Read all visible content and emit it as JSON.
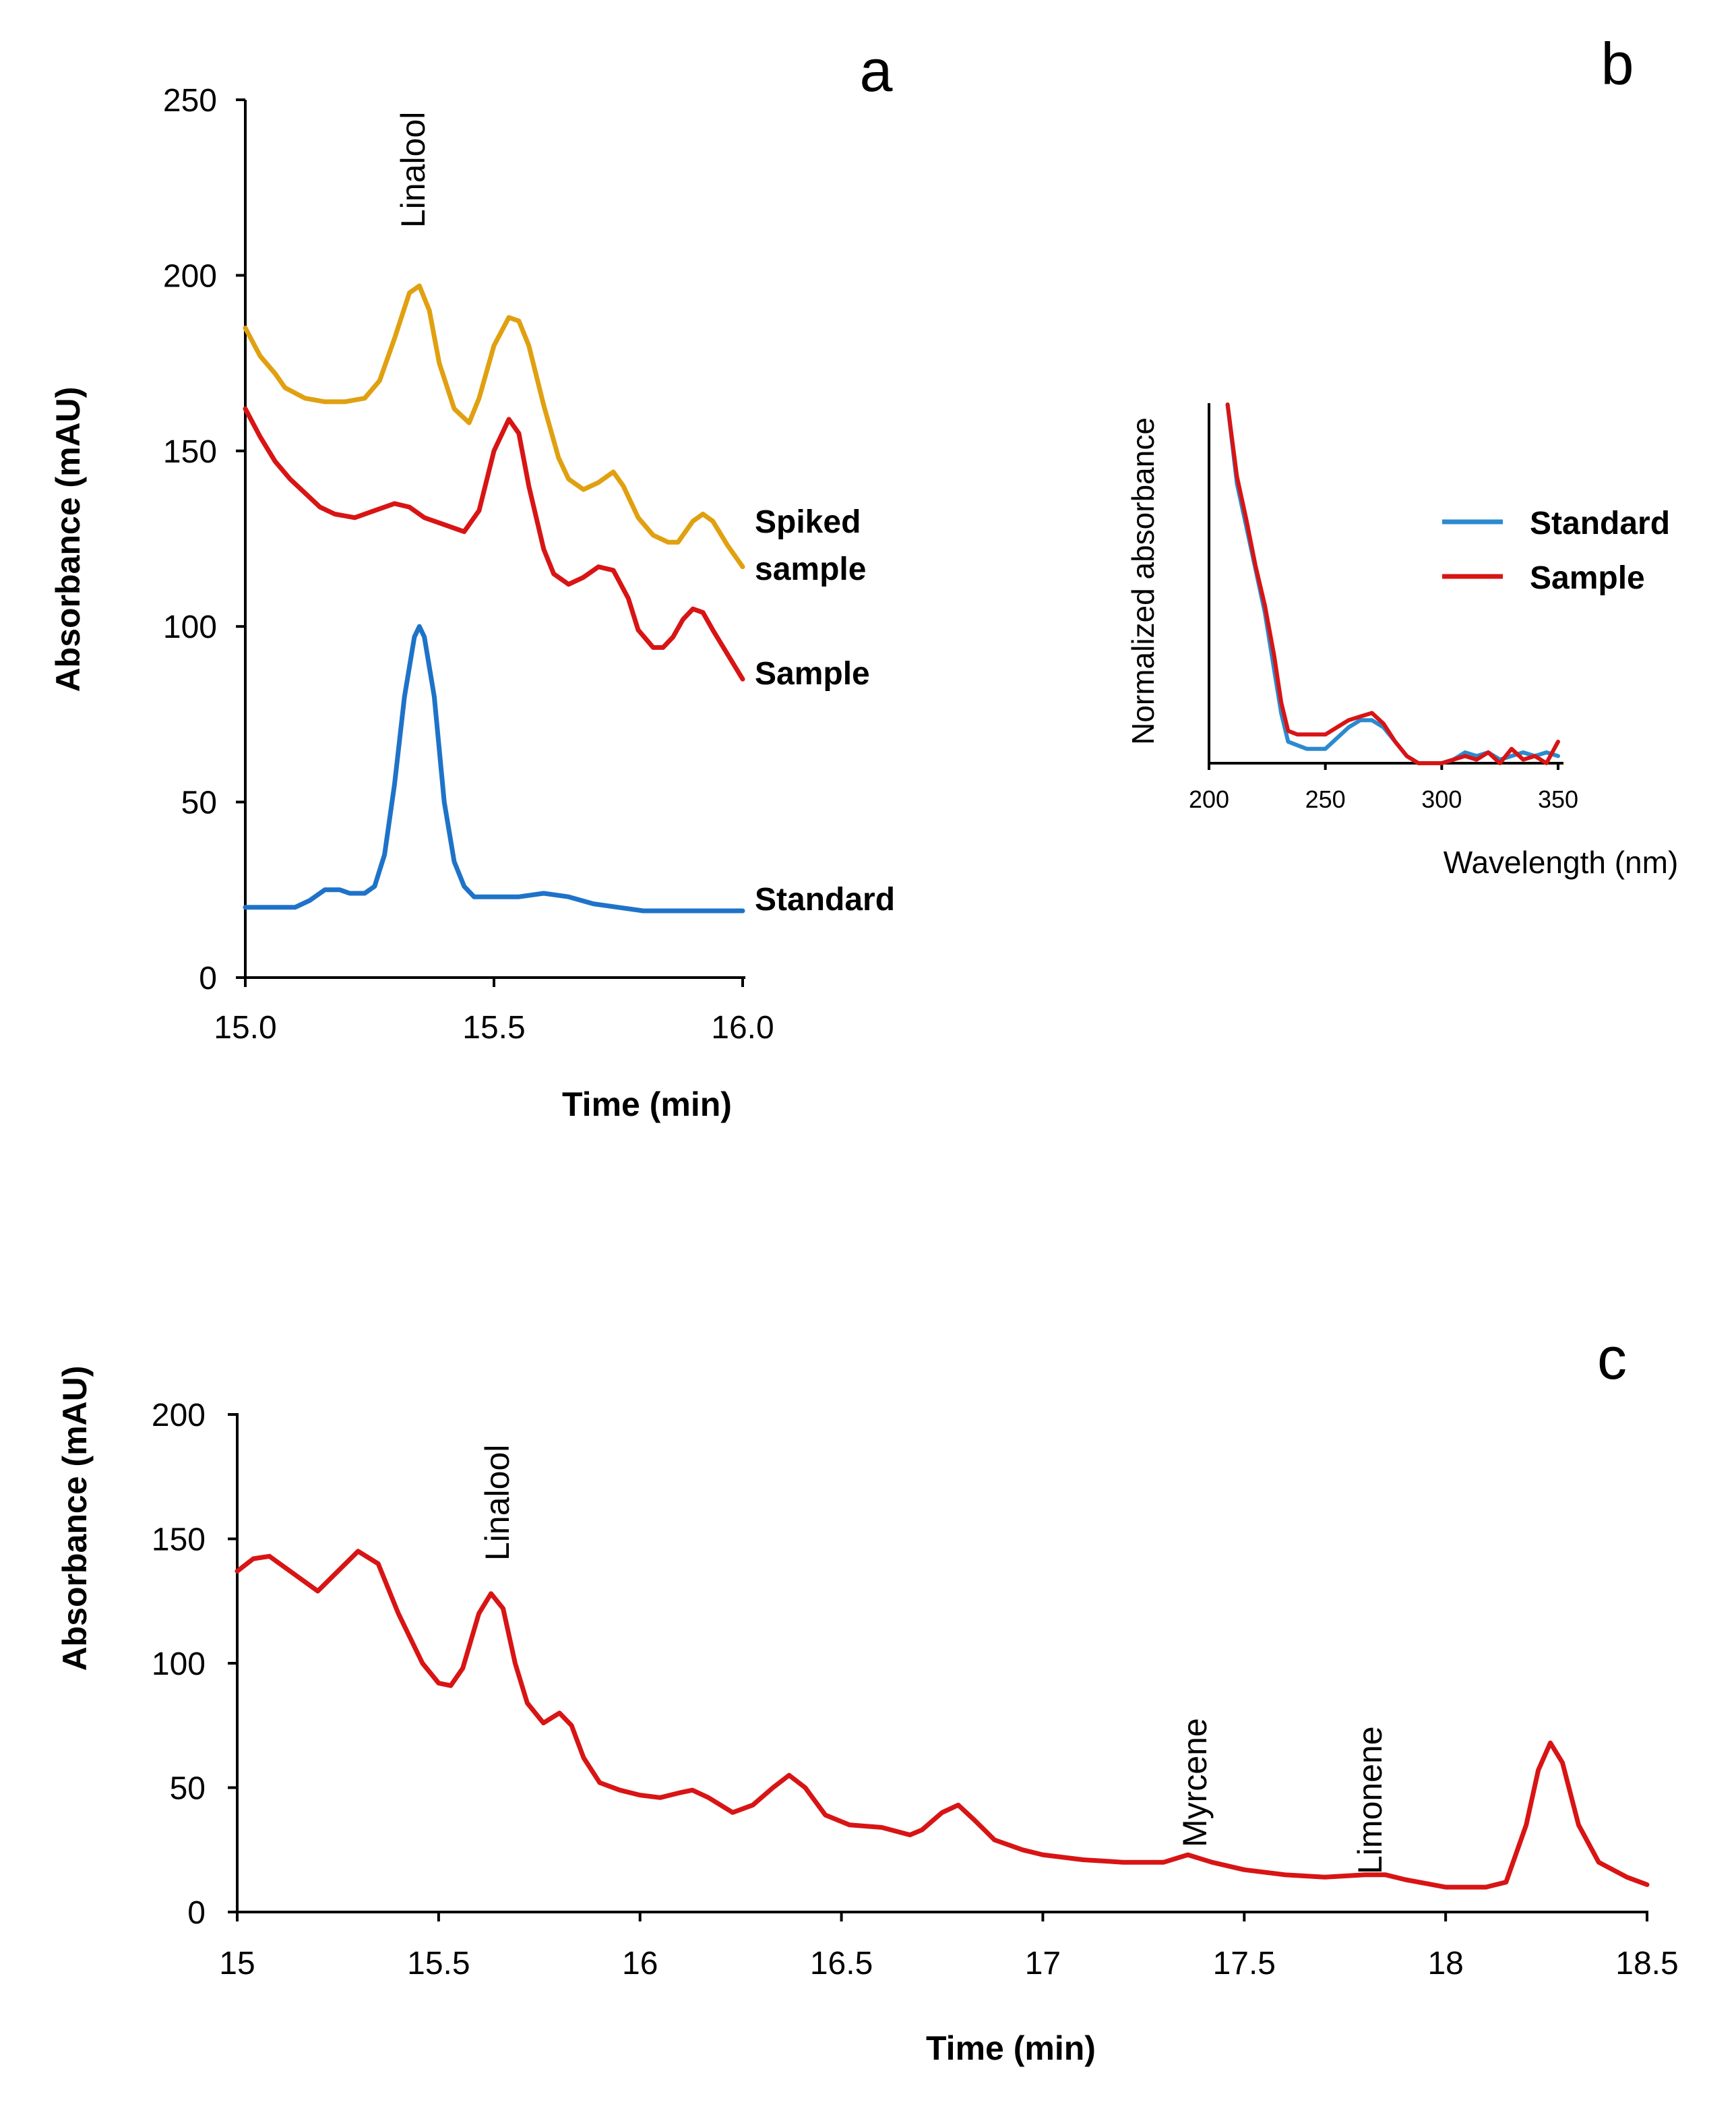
{
  "panel_letters": {
    "a": "a",
    "b": "b",
    "c": "c"
  },
  "chart_data": [
    {
      "id": "a",
      "type": "line",
      "title": "",
      "xlabel": "Time (min)",
      "ylabel": "Absorbance (mAU)",
      "xlim": [
        15.0,
        16.0
      ],
      "ylim": [
        0,
        250
      ],
      "xticks": [
        15.0,
        15.5,
        16.0
      ],
      "xtick_labels": [
        "15.0",
        "15.5",
        "16.0"
      ],
      "yticks": [
        0,
        50,
        100,
        150,
        200,
        250
      ],
      "ytick_labels": [
        "0",
        "50",
        "100",
        "150",
        "200",
        "250"
      ],
      "grid": false,
      "annotations": [
        {
          "text": "Linalool",
          "x": 15.35
        }
      ],
      "series": [
        {
          "name": "Spiked sample",
          "label_lines": [
            "Spiked",
            "sample"
          ],
          "color": "#E0A010",
          "x": [
            15.0,
            15.03,
            15.06,
            15.08,
            15.12,
            15.16,
            15.2,
            15.24,
            15.27,
            15.3,
            15.33,
            15.35,
            15.37,
            15.39,
            15.42,
            15.45,
            15.47,
            15.5,
            15.53,
            15.55,
            15.57,
            15.6,
            15.63,
            15.65,
            15.68,
            15.71,
            15.74,
            15.76,
            15.79,
            15.82,
            15.85,
            15.87,
            15.9,
            15.92,
            15.94,
            15.97,
            16.0
          ],
          "y": [
            185,
            177,
            172,
            168,
            165,
            164,
            164,
            165,
            170,
            182,
            195,
            197,
            190,
            175,
            162,
            158,
            165,
            180,
            188,
            187,
            180,
            163,
            148,
            142,
            139,
            141,
            144,
            140,
            131,
            126,
            124,
            124,
            130,
            132,
            130,
            123,
            117
          ]
        },
        {
          "name": "Sample",
          "label_lines": [
            "Sample"
          ],
          "color": "#D81414",
          "x": [
            15.0,
            15.03,
            15.06,
            15.09,
            15.12,
            15.15,
            15.18,
            15.22,
            15.26,
            15.3,
            15.33,
            15.36,
            15.4,
            15.44,
            15.47,
            15.5,
            15.53,
            15.55,
            15.57,
            15.6,
            15.62,
            15.65,
            15.68,
            15.71,
            15.74,
            15.77,
            15.79,
            15.82,
            15.84,
            15.86,
            15.88,
            15.9,
            15.92,
            15.94,
            15.97,
            16.0
          ],
          "y": [
            162,
            154,
            147,
            142,
            138,
            134,
            132,
            131,
            133,
            135,
            134,
            131,
            129,
            127,
            133,
            150,
            159,
            155,
            140,
            122,
            115,
            112,
            114,
            117,
            116,
            108,
            99,
            94,
            94,
            97,
            102,
            105,
            104,
            99,
            92,
            85
          ]
        },
        {
          "name": "Standard",
          "label_lines": [
            "Standard"
          ],
          "color": "#1E73C8",
          "x": [
            15.0,
            15.05,
            15.1,
            15.13,
            15.16,
            15.19,
            15.21,
            15.24,
            15.26,
            15.28,
            15.3,
            15.32,
            15.34,
            15.35,
            15.36,
            15.38,
            15.4,
            15.42,
            15.44,
            15.46,
            15.5,
            15.55,
            15.6,
            15.65,
            15.7,
            15.75,
            15.8,
            16.0
          ],
          "y": [
            20,
            20,
            20,
            22,
            25,
            25,
            24,
            24,
            26,
            35,
            55,
            80,
            97,
            100,
            97,
            80,
            50,
            33,
            26,
            23,
            23,
            23,
            24,
            23,
            21,
            20,
            19,
            19
          ]
        }
      ]
    },
    {
      "id": "b",
      "type": "line",
      "title": "",
      "xlabel": "Wavelength (nm)",
      "ylabel": "Normalized absorbance",
      "xlim": [
        200,
        350
      ],
      "ylim": [
        0,
        1
      ],
      "xticks": [
        200,
        250,
        300,
        350
      ],
      "xtick_labels": [
        "200",
        "250",
        "300",
        "350"
      ],
      "yticks": [],
      "grid": false,
      "legend": "right",
      "series": [
        {
          "name": "Standard",
          "color": "#2B8AD0",
          "x": [
            208,
            212,
            216,
            220,
            224,
            228,
            231,
            234,
            238,
            242,
            246,
            250,
            255,
            260,
            265,
            270,
            275,
            280,
            285,
            290,
            295,
            300,
            305,
            310,
            315,
            320,
            325,
            330,
            335,
            340,
            345,
            350
          ],
          "y": [
            1.0,
            0.78,
            0.66,
            0.54,
            0.42,
            0.26,
            0.14,
            0.06,
            0.05,
            0.04,
            0.04,
            0.04,
            0.07,
            0.1,
            0.12,
            0.12,
            0.1,
            0.06,
            0.02,
            0.0,
            0.0,
            0.0,
            0.01,
            0.03,
            0.02,
            0.03,
            0.01,
            0.02,
            0.03,
            0.02,
            0.03,
            0.02
          ]
        },
        {
          "name": "Sample",
          "color": "#D81414",
          "x": [
            208,
            212,
            216,
            220,
            224,
            228,
            231,
            234,
            238,
            242,
            246,
            250,
            255,
            260,
            265,
            270,
            275,
            280,
            285,
            290,
            295,
            300,
            305,
            310,
            315,
            320,
            325,
            330,
            335,
            340,
            345,
            350
          ],
          "y": [
            1.0,
            0.8,
            0.68,
            0.55,
            0.44,
            0.3,
            0.17,
            0.09,
            0.08,
            0.08,
            0.08,
            0.08,
            0.1,
            0.12,
            0.13,
            0.14,
            0.11,
            0.06,
            0.02,
            0.0,
            0.0,
            0.0,
            0.01,
            0.02,
            0.01,
            0.03,
            0.0,
            0.04,
            0.01,
            0.02,
            0.0,
            0.06
          ]
        }
      ]
    },
    {
      "id": "c",
      "type": "line",
      "title": "",
      "xlabel": "Time (min)",
      "ylabel": "Absorbance (mAU)",
      "xlim": [
        15,
        18.5
      ],
      "ylim": [
        0,
        200
      ],
      "xticks": [
        15,
        15.5,
        16,
        16.5,
        17,
        17.5,
        18,
        18.5
      ],
      "xtick_labels": [
        "15",
        "15.5",
        "16",
        "16.5",
        "17",
        "17.5",
        "18",
        "18.5"
      ],
      "yticks": [
        0,
        50,
        100,
        150,
        200
      ],
      "ytick_labels": [
        "0",
        "50",
        "100",
        "150",
        "200"
      ],
      "grid": false,
      "annotations": [
        {
          "text": "Linalool",
          "x": 15.63
        },
        {
          "text": "Myrcene",
          "x": 17.36
        },
        {
          "text": "Limonene",
          "x": 17.8
        }
      ],
      "series": [
        {
          "name": "Sample",
          "color": "#D81414",
          "x": [
            15.0,
            15.04,
            15.08,
            15.14,
            15.2,
            15.25,
            15.3,
            15.35,
            15.4,
            15.46,
            15.5,
            15.53,
            15.56,
            15.6,
            15.63,
            15.66,
            15.69,
            15.72,
            15.76,
            15.8,
            15.83,
            15.86,
            15.9,
            15.95,
            16.0,
            16.05,
            16.1,
            16.13,
            16.17,
            16.23,
            16.28,
            16.33,
            16.37,
            16.41,
            16.46,
            16.52,
            16.6,
            16.67,
            16.7,
            16.75,
            16.79,
            16.83,
            16.88,
            16.95,
            17.0,
            17.1,
            17.2,
            17.3,
            17.36,
            17.42,
            17.5,
            17.6,
            17.7,
            17.8,
            17.85,
            17.9,
            18.0,
            18.1,
            18.15,
            18.2,
            18.23,
            18.26,
            18.29,
            18.33,
            18.38,
            18.45,
            18.5
          ],
          "y": [
            137,
            142,
            143,
            136,
            129,
            137,
            145,
            140,
            120,
            100,
            92,
            91,
            98,
            120,
            128,
            122,
            100,
            84,
            76,
            80,
            75,
            62,
            52,
            49,
            47,
            46,
            48,
            49,
            46,
            40,
            43,
            50,
            55,
            50,
            39,
            35,
            34,
            31,
            33,
            40,
            43,
            37,
            29,
            25,
            23,
            21,
            20,
            20,
            23,
            20,
            17,
            15,
            14,
            15,
            15,
            13,
            10,
            10,
            12,
            35,
            57,
            68,
            60,
            35,
            20,
            14,
            11
          ]
        }
      ]
    }
  ]
}
